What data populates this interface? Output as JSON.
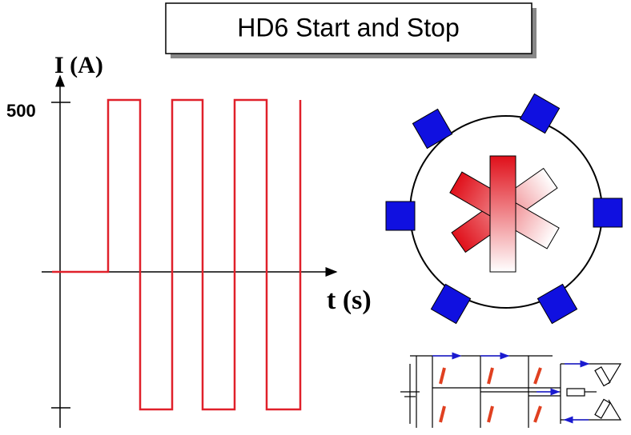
{
  "header": {
    "title": "HD6 Start and Stop"
  },
  "waveform": {
    "y_label": "I (A)",
    "y_tick_label": "500",
    "x_label": "t (s)"
  }
}
